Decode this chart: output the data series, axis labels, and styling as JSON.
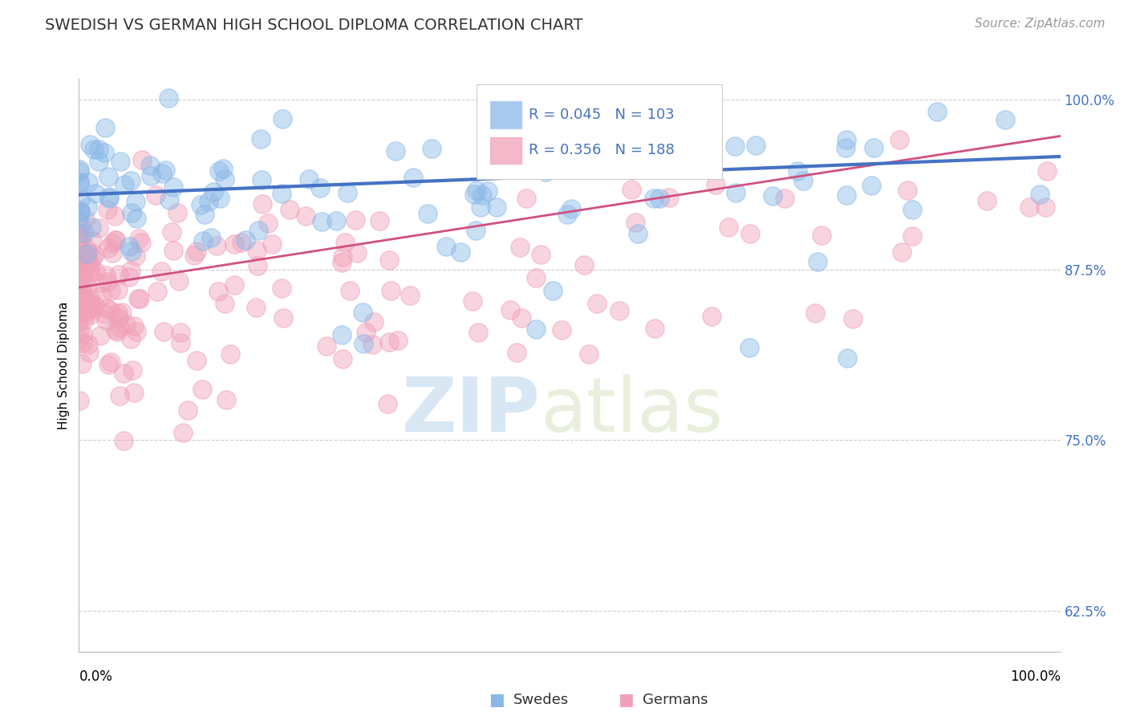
{
  "title": "SWEDISH VS GERMAN HIGH SCHOOL DIPLOMA CORRELATION CHART",
  "source": "Source: ZipAtlas.com",
  "ylabel": "High School Diploma",
  "right_yticks": [
    62.5,
    75.0,
    87.5,
    100.0
  ],
  "right_ytick_labels": [
    "62.5%",
    "75.0%",
    "87.5%",
    "100.0%"
  ],
  "legend_entries": [
    {
      "label": "Swedes",
      "color": "#89b8e8",
      "R": 0.045,
      "N": 103
    },
    {
      "label": "Germans",
      "color": "#f0a0b8",
      "R": 0.356,
      "N": 188
    }
  ],
  "blue_line_color": "#4472c4",
  "pink_line_color": "#d05080",
  "scatter_blue_color": "#89b8e8",
  "scatter_pink_color": "#f0a0b8",
  "watermark_zip": "ZIP",
  "watermark_atlas": "atlas",
  "background_color": "#ffffff",
  "xmin": 0.0,
  "xmax": 1.0,
  "ymin": 0.595,
  "ymax": 1.015,
  "blue_line_start_x": 0.0,
  "blue_line_start_y": 0.93,
  "blue_line_end_x": 1.0,
  "blue_line_end_y": 0.958,
  "pink_line_start_x": 0.0,
  "pink_line_start_y": 0.862,
  "pink_line_end_x": 1.0,
  "pink_line_end_y": 0.973,
  "title_fontsize": 14,
  "source_fontsize": 11,
  "tick_label_fontsize": 12,
  "ylabel_fontsize": 11,
  "legend_fontsize": 13
}
